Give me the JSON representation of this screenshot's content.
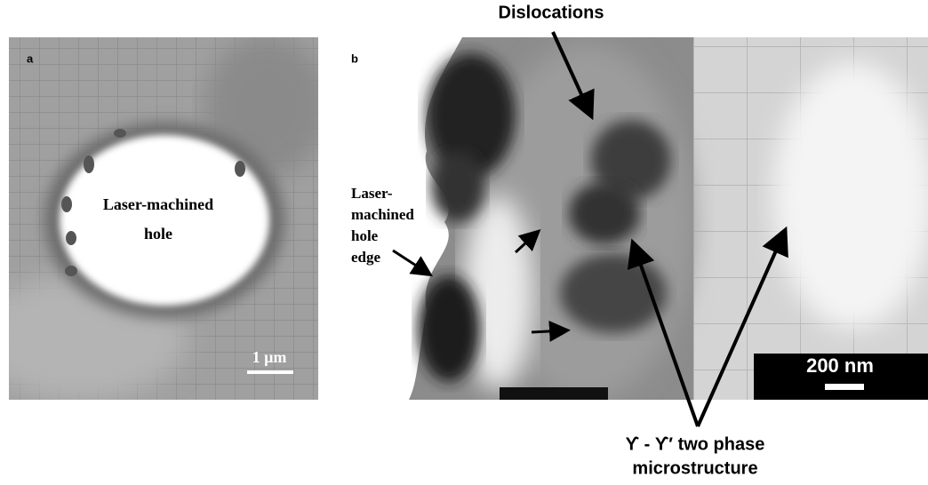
{
  "panel_a": {
    "label": "a",
    "hole_label": [
      "Laser-machined",
      "hole"
    ],
    "scale_bar": "1 µm"
  },
  "panel_b": {
    "label": "b",
    "top_annotation": "Dislocations",
    "edge_label": [
      "Laser-",
      "machined",
      "hole",
      "edge"
    ],
    "scale_bar": "200 nm",
    "phase_label": [
      "ϒ - ϒ′ two phase",
      "microstructure"
    ]
  }
}
